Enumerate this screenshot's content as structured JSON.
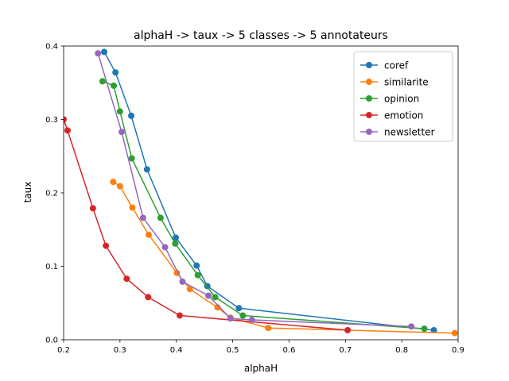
{
  "chart_data": {
    "type": "line",
    "title": "alphaH -> taux -> 5 classes -> 5 annotateurs",
    "xlabel": "alphaH",
    "ylabel": "taux",
    "xlim": [
      0.2,
      0.9
    ],
    "ylim": [
      0.0,
      0.4
    ],
    "xticks": [
      0.2,
      0.3,
      0.4,
      0.5,
      0.6,
      0.7,
      0.8,
      0.9
    ],
    "yticks": [
      0.0,
      0.1,
      0.2,
      0.3,
      0.4
    ],
    "xtick_labels": [
      "0.2",
      "0.3",
      "0.4",
      "0.5",
      "0.6",
      "0.7",
      "0.8",
      "0.9"
    ],
    "ytick_labels": [
      "0.0",
      "0.1",
      "0.2",
      "0.3",
      "0.4"
    ],
    "grid": false,
    "legend_position": "top-right",
    "series": [
      {
        "name": "coref",
        "color": "#1f77b4",
        "points": [
          [
            0.272,
            0.392
          ],
          [
            0.292,
            0.364
          ],
          [
            0.32,
            0.305
          ],
          [
            0.348,
            0.232
          ],
          [
            0.399,
            0.139
          ],
          [
            0.436,
            0.101
          ],
          [
            0.455,
            0.073
          ],
          [
            0.511,
            0.043
          ],
          [
            0.857,
            0.013
          ]
        ]
      },
      {
        "name": "similarite",
        "color": "#ff7f0e",
        "points": [
          [
            0.288,
            0.215
          ],
          [
            0.3,
            0.209
          ],
          [
            0.322,
            0.18
          ],
          [
            0.351,
            0.143
          ],
          [
            0.401,
            0.091
          ],
          [
            0.424,
            0.069
          ],
          [
            0.473,
            0.044
          ],
          [
            0.496,
            0.03
          ],
          [
            0.563,
            0.016
          ],
          [
            0.894,
            0.009
          ]
        ]
      },
      {
        "name": "opinion",
        "color": "#2ca02c",
        "points": [
          [
            0.269,
            0.352
          ],
          [
            0.289,
            0.346
          ],
          [
            0.3,
            0.311
          ],
          [
            0.321,
            0.247
          ],
          [
            0.372,
            0.166
          ],
          [
            0.398,
            0.131
          ],
          [
            0.438,
            0.088
          ],
          [
            0.469,
            0.058
          ],
          [
            0.518,
            0.033
          ],
          [
            0.84,
            0.015
          ]
        ]
      },
      {
        "name": "emotion",
        "color": "#d62728",
        "points": [
          [
            0.2,
            0.3
          ],
          [
            0.207,
            0.285
          ],
          [
            0.252,
            0.179
          ],
          [
            0.275,
            0.128
          ],
          [
            0.312,
            0.083
          ],
          [
            0.35,
            0.058
          ],
          [
            0.406,
            0.033
          ],
          [
            0.704,
            0.013
          ]
        ]
      },
      {
        "name": "newsletter",
        "color": "#9467bd",
        "points": [
          [
            0.261,
            0.39
          ],
          [
            0.303,
            0.283
          ],
          [
            0.341,
            0.166
          ],
          [
            0.38,
            0.126
          ],
          [
            0.411,
            0.079
          ],
          [
            0.457,
            0.06
          ],
          [
            0.496,
            0.029
          ],
          [
            0.534,
            0.027
          ],
          [
            0.817,
            0.018
          ]
        ]
      }
    ]
  }
}
